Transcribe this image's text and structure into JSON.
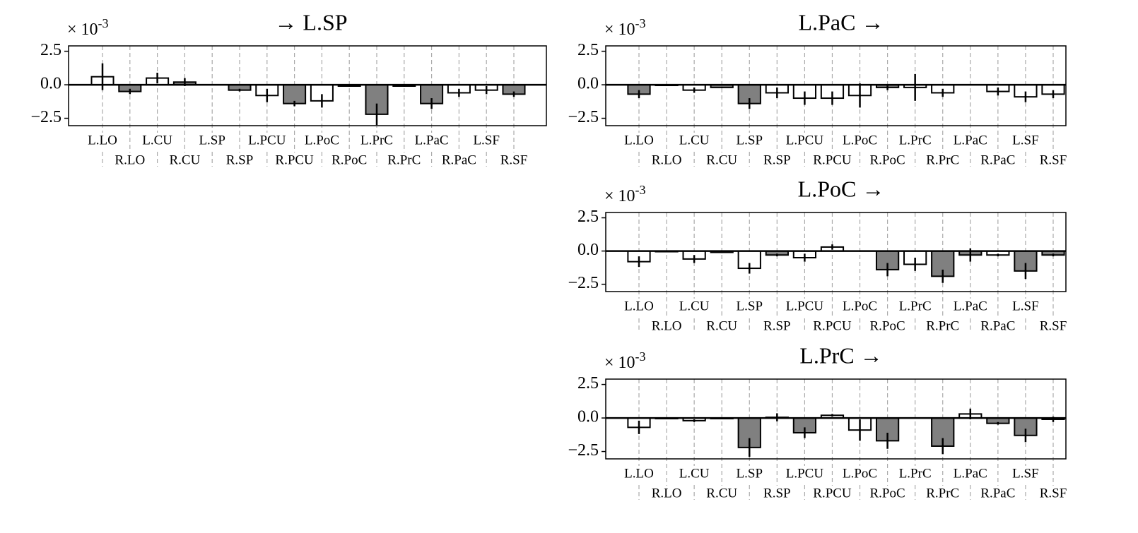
{
  "chart_data": [
    {
      "type": "bar",
      "title": "→ L.SP",
      "axis_multiplier": "× 10",
      "axis_exponent": "-3",
      "categories": [
        "L.LO",
        "R.LO",
        "L.CU",
        "R.CU",
        "L.SP",
        "R.SP",
        "L.PCU",
        "R.PCU",
        "L.PoC",
        "R.PoC",
        "L.PrC",
        "R.PrC",
        "L.PaC",
        "R.PaC",
        "L.SF",
        "R.SF"
      ],
      "values": [
        0.6,
        -0.5,
        0.5,
        0.2,
        null,
        -0.4,
        -0.8,
        -1.4,
        -1.2,
        -0.1,
        -2.2,
        -0.1,
        -1.4,
        -0.6,
        -0.4,
        -0.7
      ],
      "errors": [
        1.0,
        0.2,
        0.4,
        0.3,
        null,
        0.1,
        0.5,
        0.2,
        0.5,
        0.05,
        0.8,
        0.05,
        0.4,
        0.3,
        0.3,
        0.2
      ],
      "colors": [
        "#ffffff",
        "#808080",
        "#ffffff",
        "#808080",
        null,
        "#808080",
        "#ffffff",
        "#808080",
        "#ffffff",
        "#808080",
        "#808080",
        "#808080",
        "#808080",
        "#ffffff",
        "#ffffff",
        "#808080"
      ],
      "ylim": [
        -3.05,
        2.9
      ],
      "yticks": [
        2.5,
        {
          "value": 0,
          "label": "0.0"
        },
        {
          "value": -2.5,
          "label": "−2.5"
        }
      ],
      "xgrid": true
    },
    {
      "type": "bar",
      "title": "L.PaC →",
      "axis_multiplier": "× 10",
      "axis_exponent": "-3",
      "categories": [
        "L.LO",
        "R.LO",
        "L.CU",
        "R.CU",
        "L.SP",
        "R.SP",
        "L.PCU",
        "R.PCU",
        "L.PoC",
        "R.PoC",
        "L.PrC",
        "R.PrC",
        "L.PaC",
        "R.PaC",
        "L.SF",
        "R.SF"
      ],
      "values": [
        -0.7,
        -0.05,
        -0.4,
        -0.2,
        -1.4,
        -0.6,
        -1.0,
        -1.0,
        -0.8,
        -0.2,
        -0.2,
        -0.6,
        null,
        -0.5,
        -0.9,
        -0.7
      ],
      "errors": [
        0.3,
        0.05,
        0.2,
        0.05,
        0.4,
        0.4,
        0.5,
        0.5,
        0.9,
        0.2,
        1.0,
        0.3,
        null,
        0.3,
        0.4,
        0.3
      ],
      "colors": [
        "#808080",
        "#808080",
        "#ffffff",
        "#808080",
        "#808080",
        "#ffffff",
        "#ffffff",
        "#ffffff",
        "#ffffff",
        "#808080",
        "#ffffff",
        "#ffffff",
        null,
        "#ffffff",
        "#ffffff",
        "#ffffff"
      ],
      "ylim": [
        -3.05,
        2.9
      ],
      "yticks": [
        2.5,
        {
          "value": 0,
          "label": "0.0"
        },
        {
          "value": -2.5,
          "label": "−2.5"
        }
      ],
      "xgrid": true
    },
    {
      "type": "bar",
      "title": "L.PoC →",
      "axis_multiplier": "× 10",
      "axis_exponent": "-3",
      "categories": [
        "L.LO",
        "R.LO",
        "L.CU",
        "R.CU",
        "L.SP",
        "R.SP",
        "L.PCU",
        "R.PCU",
        "L.PoC",
        "R.PoC",
        "L.PrC",
        "R.PrC",
        "L.PaC",
        "R.PaC",
        "L.SF",
        "R.SF"
      ],
      "values": [
        -0.8,
        -0.05,
        -0.6,
        -0.1,
        -1.3,
        -0.3,
        -0.5,
        0.3,
        null,
        -1.4,
        -1.0,
        -1.9,
        -0.3,
        -0.3,
        -1.5,
        -0.3
      ],
      "errors": [
        0.4,
        0.05,
        0.3,
        0.05,
        0.4,
        0.1,
        0.3,
        0.2,
        null,
        0.5,
        0.5,
        0.5,
        0.5,
        0.1,
        0.6,
        0.1
      ],
      "colors": [
        "#ffffff",
        "#808080",
        "#ffffff",
        "#808080",
        "#ffffff",
        "#808080",
        "#ffffff",
        "#ffffff",
        null,
        "#808080",
        "#ffffff",
        "#808080",
        "#808080",
        "#ffffff",
        "#808080",
        "#808080"
      ],
      "ylim": [
        -3.05,
        2.9
      ],
      "yticks": [
        2.5,
        {
          "value": 0,
          "label": "0.0"
        },
        {
          "value": -2.5,
          "label": "−2.5"
        }
      ],
      "xgrid": true
    },
    {
      "type": "bar",
      "title": "L.PrC →",
      "axis_multiplier": "× 10",
      "axis_exponent": "-3",
      "categories": [
        "L.LO",
        "R.LO",
        "L.CU",
        "R.CU",
        "L.SP",
        "R.SP",
        "L.PCU",
        "R.PCU",
        "L.PoC",
        "R.PoC",
        "L.PrC",
        "R.PrC",
        "L.PaC",
        "R.PaC",
        "L.SF",
        "R.SF"
      ],
      "values": [
        -0.7,
        -0.05,
        -0.2,
        -0.05,
        -2.2,
        0.05,
        -1.1,
        0.2,
        -0.9,
        -1.7,
        null,
        -2.1,
        0.3,
        -0.4,
        -1.3,
        -0.1
      ],
      "errors": [
        0.5,
        0.05,
        0.1,
        0.05,
        0.7,
        0.3,
        0.4,
        0.1,
        0.8,
        0.6,
        null,
        0.6,
        0.4,
        0.1,
        0.5,
        0.2
      ],
      "colors": [
        "#ffffff",
        "#808080",
        "#ffffff",
        "#808080",
        "#808080",
        "#ffffff",
        "#808080",
        "#ffffff",
        "#ffffff",
        "#808080",
        null,
        "#808080",
        "#ffffff",
        "#808080",
        "#808080",
        "#ffffff"
      ],
      "ylim": [
        -3.05,
        2.9
      ],
      "yticks": [
        2.5,
        {
          "value": 0,
          "label": "0.0"
        },
        {
          "value": -2.5,
          "label": "−2.5"
        }
      ],
      "xgrid": true
    }
  ]
}
